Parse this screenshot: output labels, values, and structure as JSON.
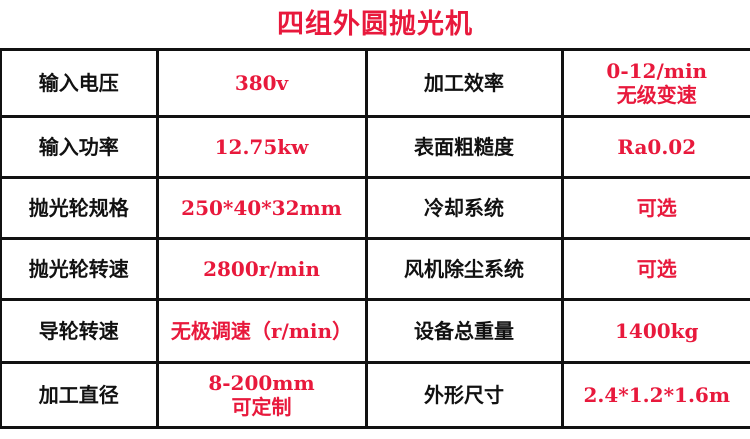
{
  "title": "四组外圆抛光机",
  "rows": [
    {
      "k1": "输入电压",
      "v1": [
        "380v"
      ],
      "k2": "加工效率",
      "v2": [
        "0-12/min",
        "无级变速"
      ]
    },
    {
      "k1": "输入功率",
      "v1": [
        "12.75kw"
      ],
      "k2": "表面粗糙度",
      "v2": [
        "Ra0.02"
      ]
    },
    {
      "k1": "抛光轮规格",
      "v1": [
        "250*40*32mm"
      ],
      "k2": "冷却系统",
      "v2": [
        "可选"
      ]
    },
    {
      "k1": "抛光轮转速",
      "v1": [
        "2800r/min"
      ],
      "k2": "风机除尘系统",
      "v2": [
        "可选"
      ]
    },
    {
      "k1": "导轮转速",
      "v1": [
        "无极调速（r/min）"
      ],
      "k2": "设备总重量",
      "v2": [
        "1400kg"
      ]
    },
    {
      "k1": "加工直径",
      "v1": [
        "8-200mm",
        "可定制"
      ],
      "k2": "外形尺寸",
      "v2": [
        "2.4*1.2*1.6m"
      ]
    }
  ],
  "colors": {
    "accent": "#e8193c",
    "text": "#111111"
  }
}
